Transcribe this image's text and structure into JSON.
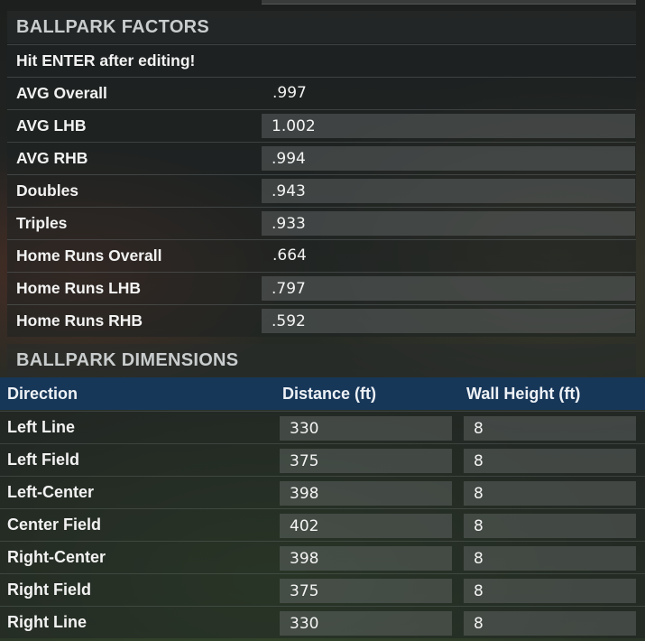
{
  "factors": {
    "title": "BALLPARK FACTORS",
    "note": "Hit ENTER after editing!",
    "rows": [
      {
        "label": "AVG Overall",
        "value": ".997"
      },
      {
        "label": "AVG LHB",
        "value": "1.002"
      },
      {
        "label": "AVG RHB",
        "value": ".994"
      },
      {
        "label": "Doubles",
        "value": ".943"
      },
      {
        "label": "Triples",
        "value": ".933"
      },
      {
        "label": "Home Runs Overall",
        "value": ".664"
      },
      {
        "label": "Home Runs LHB",
        "value": ".797"
      },
      {
        "label": "Home Runs RHB",
        "value": ".592"
      }
    ]
  },
  "dimensions": {
    "title": "BALLPARK DIMENSIONS",
    "columns": [
      "Direction",
      "Distance (ft)",
      "Wall Height (ft)"
    ],
    "rows": [
      {
        "direction": "Left Line",
        "distance": "330",
        "wall": "8"
      },
      {
        "direction": "Left Field",
        "distance": "375",
        "wall": "8"
      },
      {
        "direction": "Left-Center",
        "distance": "398",
        "wall": "8"
      },
      {
        "direction": "Center Field",
        "distance": "402",
        "wall": "8"
      },
      {
        "direction": "Right-Center",
        "distance": "398",
        "wall": "8"
      },
      {
        "direction": "Right Field",
        "distance": "375",
        "wall": "8"
      },
      {
        "direction": "Right Line",
        "distance": "330",
        "wall": "8"
      }
    ]
  }
}
